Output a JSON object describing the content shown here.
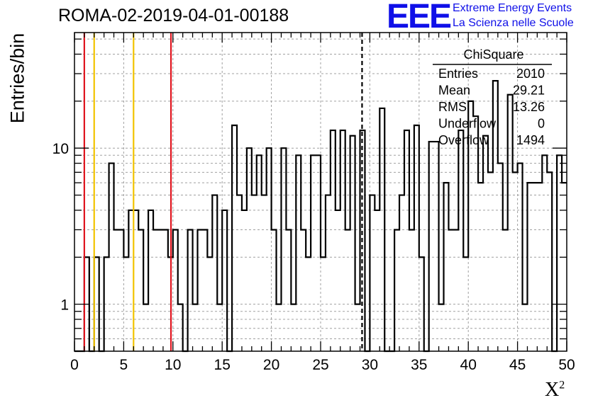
{
  "chart_data": {
    "type": "histogram",
    "title": "ROMA-02-2019-04-01-00188",
    "xlabel": "X",
    "xlabel_superscript": "2",
    "ylabel": "Entries/bin",
    "x_range": [
      0,
      50
    ],
    "y_range": [
      0.5,
      55
    ],
    "y_scale": "log",
    "bin_width": 0.5,
    "x_ticks": [
      0,
      5,
      10,
      15,
      20,
      25,
      30,
      35,
      40,
      45,
      50
    ],
    "x_tick_labels": [
      "0",
      "5",
      "10",
      "15",
      "20",
      "25",
      "30",
      "35",
      "40",
      "45",
      "50"
    ],
    "y_tick_labels": [
      {
        "value": 1,
        "label": "1"
      },
      {
        "value": 10,
        "label": "10"
      }
    ],
    "grid": true,
    "bin_contents": [
      0,
      0,
      2,
      0,
      2,
      0,
      2,
      8,
      3,
      3,
      2,
      4,
      4,
      3,
      1,
      4,
      3,
      3,
      3,
      2,
      3,
      1,
      0,
      3,
      1,
      3,
      3,
      2,
      5,
      1,
      4,
      0,
      14,
      5,
      4,
      10,
      5,
      9,
      5,
      10,
      3,
      1,
      10,
      3,
      1,
      9,
      3,
      2,
      9,
      9,
      2,
      5,
      13,
      4,
      13,
      3,
      12,
      1,
      13,
      0,
      5,
      4,
      18,
      0,
      0,
      3,
      5,
      13,
      3,
      14,
      2,
      0,
      11,
      11,
      1,
      6,
      3,
      3,
      13,
      2,
      20,
      16,
      6,
      12,
      7,
      27,
      8,
      3,
      22,
      7,
      8,
      1,
      6,
      6,
      6,
      9,
      7,
      0,
      9,
      6
    ],
    "vertical_lines": [
      {
        "x": 1.0,
        "color": "#e0141e",
        "style": "solid"
      },
      {
        "x": 2.0,
        "color": "#f2c300",
        "style": "solid"
      },
      {
        "x": 6.0,
        "color": "#f2c300",
        "style": "solid"
      },
      {
        "x": 9.8,
        "color": "#e0141e",
        "style": "solid"
      },
      {
        "x": 29.21,
        "color": "#000000",
        "style": "dashed"
      }
    ],
    "stats": {
      "name": "ChiSquare",
      "rows": [
        {
          "label": "Entries",
          "value": "2010"
        },
        {
          "label": "Mean",
          "value": "29.21"
        },
        {
          "label": "RMS",
          "value": "13.26"
        },
        {
          "label": "Underflow",
          "value": "0"
        },
        {
          "label": "Overflow",
          "value": "1494"
        }
      ]
    }
  },
  "logo": {
    "mark": "EEE",
    "line1": "Extreme Energy Events",
    "line2": "La Scienza nelle Scuole",
    "color": "#1010e8"
  }
}
